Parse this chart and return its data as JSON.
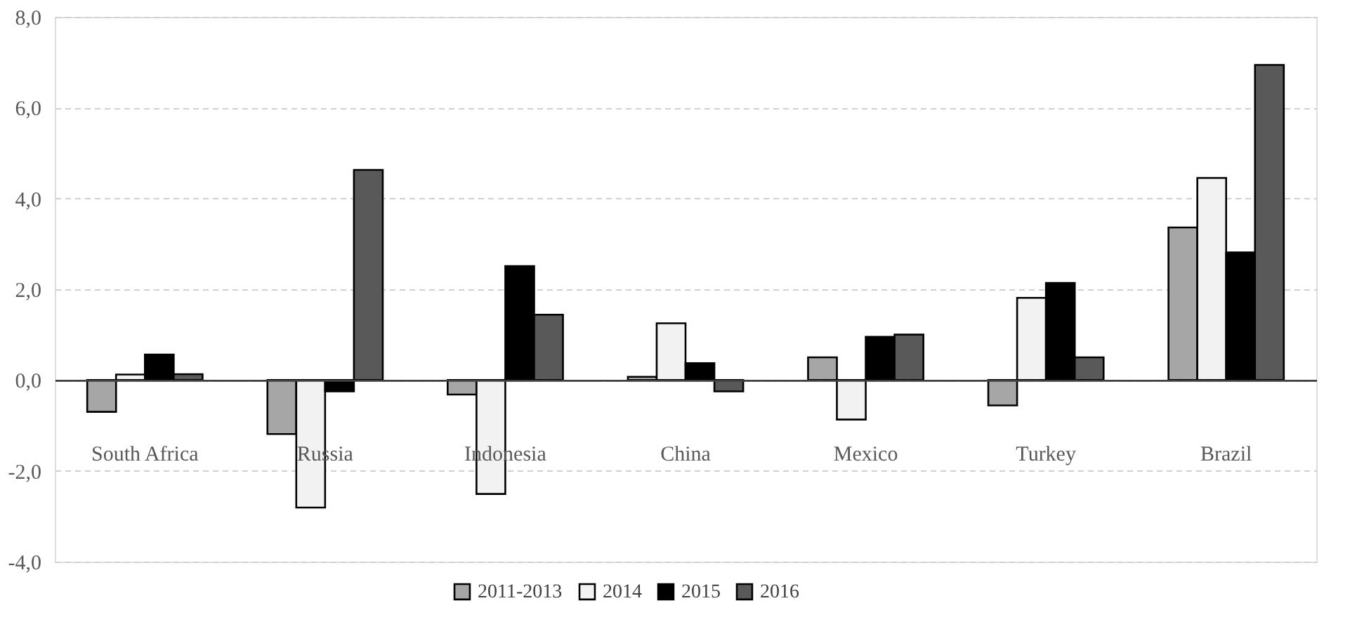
{
  "chart_data": {
    "type": "bar",
    "categories": [
      "South Africa",
      "Russia",
      "Indonesia",
      "China",
      "Mexico",
      "Turkey",
      "Brazil"
    ],
    "series": [
      {
        "name": "2011-2013",
        "color": "#a6a6a6",
        "values": [
          -0.7,
          -1.19,
          -0.32,
          0.07,
          0.5,
          -0.56,
          3.36
        ]
      },
      {
        "name": "2014",
        "color": "#f2f2f2",
        "values": [
          0.12,
          -2.81,
          -2.51,
          1.25,
          -0.87,
          1.81,
          4.45
        ]
      },
      {
        "name": "2015",
        "color": "#000000",
        "values": [
          0.56,
          -0.25,
          2.51,
          0.37,
          0.95,
          2.14,
          2.81
        ]
      },
      {
        "name": "2016",
        "color": "#595959",
        "values": [
          0.13,
          4.63,
          1.44,
          -0.25,
          1.0,
          0.5,
          6.94
        ]
      }
    ],
    "ylim": [
      -4,
      8
    ],
    "yticks": [
      {
        "value": -4,
        "label": "-4,0"
      },
      {
        "value": -2,
        "label": "-2,0"
      },
      {
        "value": 0,
        "label": "0,0"
      },
      {
        "value": 2,
        "label": "2,0"
      },
      {
        "value": 4,
        "label": "4,0"
      },
      {
        "value": 6,
        "label": "6,0"
      },
      {
        "value": 8,
        "label": "8,0"
      }
    ],
    "grid": "y",
    "legend": "bottom"
  }
}
